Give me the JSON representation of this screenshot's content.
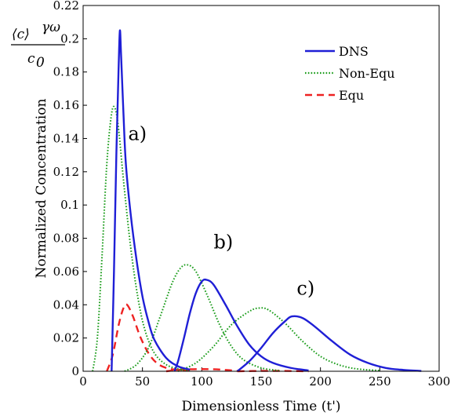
{
  "chart_data": {
    "type": "line",
    "xlabel": "Dimensionless Time (t')",
    "ylabel": "Normalized Concentration",
    "ylabel_formula": {
      "numerator": "⟨c⟩",
      "superscript": "γω",
      "denominator": "c",
      "denominator_subscript": "0"
    },
    "xlim": [
      0,
      300
    ],
    "ylim": [
      0,
      0.22
    ],
    "xticks": [
      "0",
      "50",
      "100",
      "150",
      "200",
      "250",
      "300"
    ],
    "yticks": [
      "0",
      "0.02",
      "0.04",
      "0.06",
      "0.08",
      "0.1",
      "0.12",
      "0.14",
      "0.16",
      "0.18",
      "0.2",
      "0.22"
    ],
    "grid": false,
    "legend_position": "top-right",
    "legend": [
      {
        "name": "DNS",
        "color": "#1f1fd6",
        "style": "solid"
      },
      {
        "name": "Non-Equ",
        "color": "#1a9c1a",
        "style": "dotted"
      },
      {
        "name": "Equ",
        "color": "#ee2222",
        "style": "dashed"
      }
    ],
    "annotations": [
      {
        "text": "a)",
        "x": 38,
        "y": 0.139
      },
      {
        "text": "b)",
        "x": 110,
        "y": 0.074
      },
      {
        "text": "c)",
        "x": 180,
        "y": 0.046
      }
    ],
    "series": [
      {
        "legend": "DNS",
        "case": "a",
        "x": [
          24,
          26,
          28,
          30,
          31,
          32,
          34,
          36,
          40,
          45,
          50,
          55,
          60,
          70,
          80,
          90
        ],
        "y": [
          0,
          0.06,
          0.13,
          0.185,
          0.205,
          0.19,
          0.155,
          0.125,
          0.095,
          0.067,
          0.045,
          0.03,
          0.019,
          0.008,
          0.003,
          0.001
        ]
      },
      {
        "legend": "DNS",
        "case": "b",
        "x": [
          77,
          80,
          85,
          90,
          95,
          100,
          104,
          110,
          120,
          130,
          140,
          150,
          160,
          175,
          190
        ],
        "y": [
          0,
          0.006,
          0.02,
          0.035,
          0.047,
          0.054,
          0.055,
          0.052,
          0.04,
          0.027,
          0.016,
          0.009,
          0.005,
          0.002,
          0.0005
        ]
      },
      {
        "legend": "DNS",
        "case": "c",
        "x": [
          130,
          140,
          150,
          160,
          170,
          176,
          185,
          195,
          210,
          225,
          240,
          255,
          270,
          285
        ],
        "y": [
          0,
          0.006,
          0.014,
          0.023,
          0.03,
          0.033,
          0.032,
          0.027,
          0.018,
          0.01,
          0.005,
          0.002,
          0.0008,
          0.0002
        ]
      },
      {
        "legend": "Non-Equ",
        "case": "a",
        "x": [
          8,
          12,
          16,
          20,
          24,
          27,
          30,
          34,
          40,
          46,
          52,
          60,
          70,
          80,
          90
        ],
        "y": [
          0,
          0.02,
          0.07,
          0.125,
          0.155,
          0.158,
          0.145,
          0.115,
          0.075,
          0.045,
          0.025,
          0.011,
          0.004,
          0.0015,
          0.0005
        ]
      },
      {
        "legend": "Non-Equ",
        "case": "b",
        "x": [
          35,
          45,
          55,
          65,
          75,
          82,
          88,
          95,
          105,
          115,
          125,
          135,
          150,
          165
        ],
        "y": [
          0,
          0.004,
          0.014,
          0.033,
          0.053,
          0.062,
          0.064,
          0.06,
          0.045,
          0.028,
          0.015,
          0.007,
          0.002,
          0.0005
        ]
      },
      {
        "legend": "Non-Equ",
        "case": "c",
        "x": [
          80,
          95,
          110,
          125,
          140,
          148,
          156,
          170,
          185,
          200,
          215,
          230,
          250
        ],
        "y": [
          0,
          0.005,
          0.015,
          0.028,
          0.036,
          0.038,
          0.037,
          0.029,
          0.018,
          0.009,
          0.004,
          0.0015,
          0.0004
        ]
      },
      {
        "legend": "Equ",
        "case": "a",
        "x": [
          20,
          25,
          30,
          34,
          37,
          42,
          48,
          55,
          62,
          70,
          80,
          90
        ],
        "y": [
          0,
          0.01,
          0.028,
          0.038,
          0.04,
          0.033,
          0.021,
          0.011,
          0.005,
          0.002,
          0.0008,
          0.0003
        ]
      },
      {
        "legend": "Equ",
        "case": "b",
        "x": [
          70,
          80,
          90,
          100,
          110,
          120,
          130
        ],
        "y": [
          0,
          0.0008,
          0.0012,
          0.0013,
          0.0012,
          0.0008,
          0.0002
        ]
      },
      {
        "legend": "Equ",
        "case": "c",
        "x": [
          130,
          150,
          170,
          190
        ],
        "y": [
          0,
          0.0002,
          0.0002,
          0
        ]
      }
    ]
  }
}
